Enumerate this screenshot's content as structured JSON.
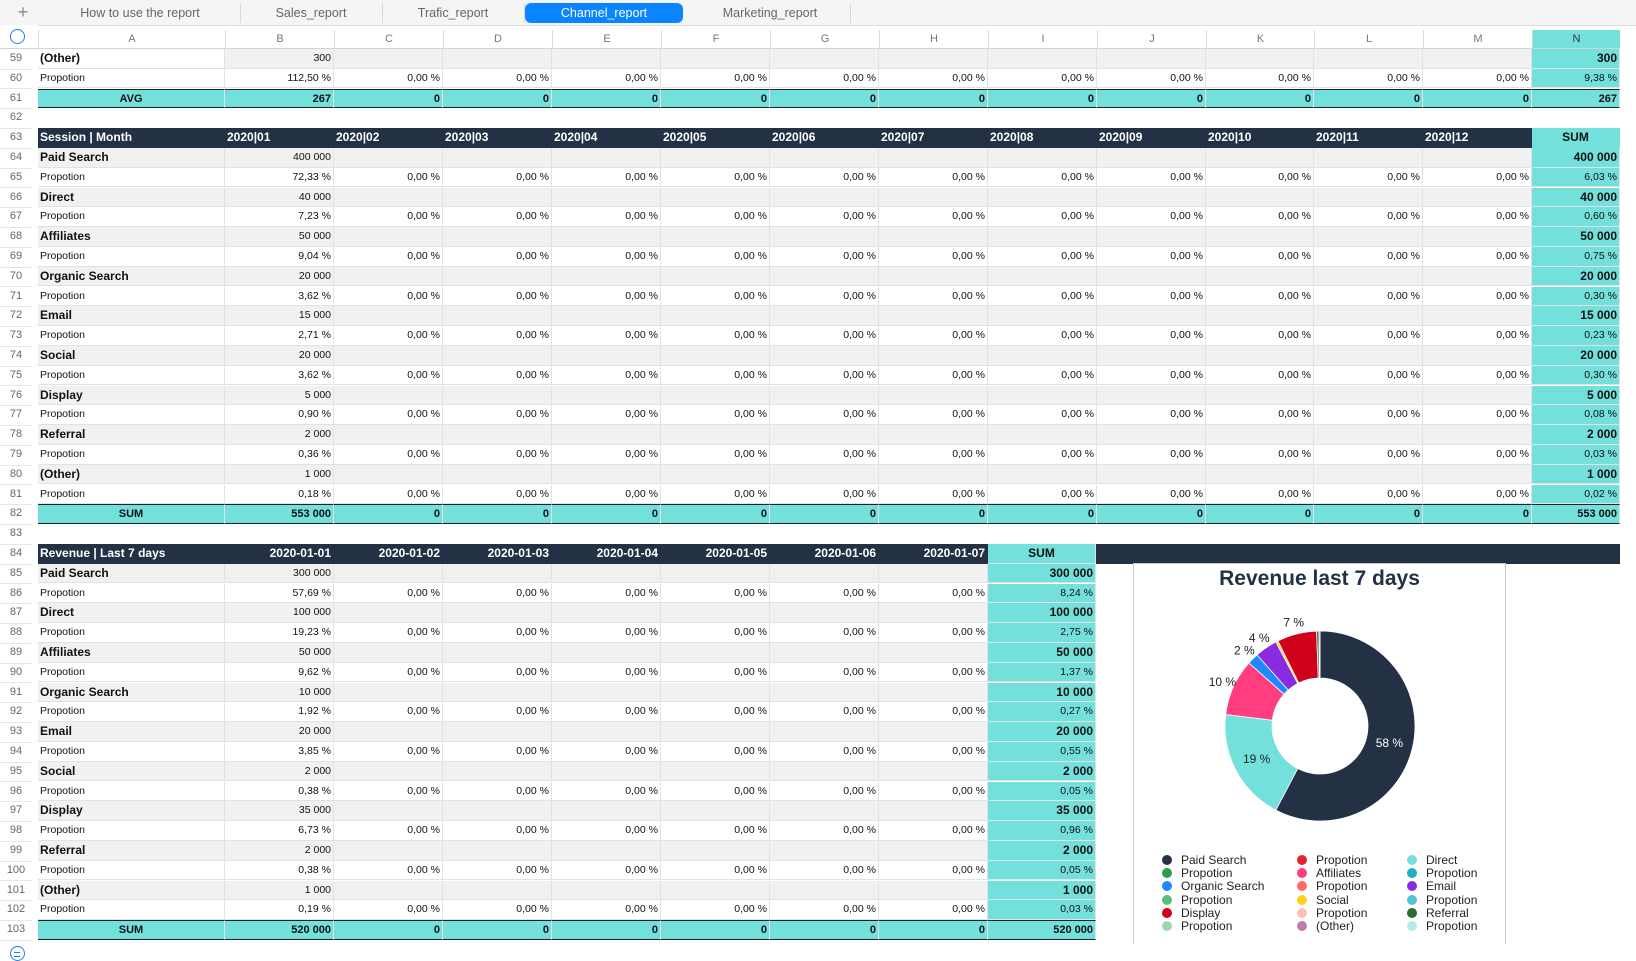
{
  "tabs": [
    {
      "label": "How to use the report",
      "active": false
    },
    {
      "label": "Sales_report",
      "active": false
    },
    {
      "label": "Trafic_report",
      "active": false
    },
    {
      "label": "Channel_report",
      "active": true
    },
    {
      "label": "Marketing_report",
      "active": false
    }
  ],
  "add_sheet_symbol": "+",
  "columns": [
    "A",
    "B",
    "C",
    "D",
    "E",
    "F",
    "G",
    "H",
    "I",
    "J",
    "K",
    "L",
    "M",
    "N"
  ],
  "selected_column": "N",
  "rows": {
    "59": {
      "num": "59",
      "cells": [
        "(Other)",
        "300",
        "",
        "",
        "",
        "",
        "",
        "",
        "",
        "",
        "",
        "",
        "",
        "300"
      ]
    },
    "60": {
      "num": "60",
      "cells": [
        "Propotion",
        "112,50 %",
        "0,00 %",
        "0,00 %",
        "0,00 %",
        "0,00 %",
        "0,00 %",
        "0,00 %",
        "0,00 %",
        "0,00 %",
        "0,00 %",
        "0,00 %",
        "0,00 %",
        "9,38 %"
      ]
    },
    "61": {
      "num": "61",
      "cells": [
        "AVG",
        "267",
        "0",
        "0",
        "0",
        "0",
        "0",
        "0",
        "0",
        "0",
        "0",
        "0",
        "0",
        "267"
      ]
    },
    "62": {
      "num": "62"
    },
    "63": {
      "num": "63",
      "cells": [
        "Session | Month",
        "2020|01",
        "2020|02",
        "2020|03",
        "2020|04",
        "2020|05",
        "2020|06",
        "2020|07",
        "2020|08",
        "2020|09",
        "2020|10",
        "2020|11",
        "2020|12",
        "SUM"
      ]
    }
  },
  "session_table": {
    "start_row": 64,
    "channels": [
      {
        "name": "Paid Search",
        "value": "400 000",
        "prop": "72,33 %",
        "sum": "400 000",
        "sum_prop": "6,03 %"
      },
      {
        "name": "Direct",
        "value": "40 000",
        "prop": "7,23 %",
        "sum": "40 000",
        "sum_prop": "0,60 %"
      },
      {
        "name": "Affiliates",
        "value": "50 000",
        "prop": "9,04 %",
        "sum": "50 000",
        "sum_prop": "0,75 %"
      },
      {
        "name": "Organic Search",
        "value": "20 000",
        "prop": "3,62 %",
        "sum": "20 000",
        "sum_prop": "0,30 %"
      },
      {
        "name": "Email",
        "value": "15 000",
        "prop": "2,71 %",
        "sum": "15 000",
        "sum_prop": "0,23 %"
      },
      {
        "name": "Social",
        "value": "20 000",
        "prop": "3,62 %",
        "sum": "20 000",
        "sum_prop": "0,30 %"
      },
      {
        "name": "Display",
        "value": "5 000",
        "prop": "0,90 %",
        "sum": "5 000",
        "sum_prop": "0,08 %"
      },
      {
        "name": "Referral",
        "value": "2 000",
        "prop": "0,36 %",
        "sum": "2 000",
        "sum_prop": "0,03 %"
      },
      {
        "name": "(Other)",
        "value": "1 000",
        "prop": "0,18 %",
        "sum": "1 000",
        "sum_prop": "0,02 %"
      }
    ],
    "prop_label": "Propotion",
    "zero_prop": "0,00 %",
    "total_row": {
      "num": "82",
      "label": "SUM",
      "b": "553 000",
      "zero": "0",
      "sum": "553 000"
    }
  },
  "row83": "83",
  "revenue_table": {
    "header_row": "84",
    "title": "Revenue | Last 7 days",
    "dates": [
      "2020-01-01",
      "2020-01-02",
      "2020-01-03",
      "2020-01-04",
      "2020-01-05",
      "2020-01-06",
      "2020-01-07"
    ],
    "sum_label": "SUM",
    "start_row": 85,
    "channels": [
      {
        "name": "Paid Search",
        "value": "300 000",
        "prop": "57,69 %",
        "sum": "300 000",
        "sum_prop": "8,24 %"
      },
      {
        "name": "Direct",
        "value": "100 000",
        "prop": "19,23 %",
        "sum": "100 000",
        "sum_prop": "2,75 %"
      },
      {
        "name": "Affiliates",
        "value": "50 000",
        "prop": "9,62 %",
        "sum": "50 000",
        "sum_prop": "1,37 %"
      },
      {
        "name": "Organic Search",
        "value": "10 000",
        "prop": "1,92 %",
        "sum": "10 000",
        "sum_prop": "0,27 %"
      },
      {
        "name": "Email",
        "value": "20 000",
        "prop": "3,85 %",
        "sum": "20 000",
        "sum_prop": "0,55 %"
      },
      {
        "name": "Social",
        "value": "2 000",
        "prop": "0,38 %",
        "sum": "2 000",
        "sum_prop": "0,05 %"
      },
      {
        "name": "Display",
        "value": "35 000",
        "prop": "6,73 %",
        "sum": "35 000",
        "sum_prop": "0,96 %"
      },
      {
        "name": "Referral",
        "value": "2 000",
        "prop": "0,38 %",
        "sum": "2 000",
        "sum_prop": "0,05 %"
      },
      {
        "name": "(Other)",
        "value": "1 000",
        "prop": "0,19 %",
        "sum": "1 000",
        "sum_prop": "0,03 %"
      }
    ],
    "prop_label": "Propotion",
    "zero_prop": "0,00 %",
    "total_row": {
      "num": "103",
      "label": "SUM",
      "b": "520 000",
      "zero": "0",
      "sum": "520 000"
    }
  },
  "chart_data": {
    "type": "pie",
    "title": "Revenue last 7 days",
    "donut": true,
    "slices": [
      {
        "label": "Paid Search",
        "value": 300000,
        "color": "#243044",
        "pct_label": "58 %"
      },
      {
        "label": "Propotion",
        "value": 0,
        "color": "#2e9d4c",
        "pct_label": ""
      },
      {
        "label": "Direct",
        "value": 100000,
        "color": "#74e0dc",
        "pct_label": "19 %"
      },
      {
        "label": "Propotion",
        "value": 0,
        "color": "#1fb0c4",
        "pct_label": ""
      },
      {
        "label": "Affiliates",
        "value": 50000,
        "color": "#ff3d7f",
        "pct_label": "10 %"
      },
      {
        "label": "Propotion",
        "value": 0,
        "color": "#ff6b6b",
        "pct_label": ""
      },
      {
        "label": "Organic Search",
        "value": 10000,
        "color": "#1e88ff",
        "pct_label": "2 %"
      },
      {
        "label": "Propotion",
        "value": 0,
        "color": "#5cbf76",
        "pct_label": ""
      },
      {
        "label": "Email",
        "value": 20000,
        "color": "#8a2be2",
        "pct_label": "4 %"
      },
      {
        "label": "Propotion",
        "value": 0,
        "color": "#4fc3e0",
        "pct_label": ""
      },
      {
        "label": "Social",
        "value": 2000,
        "color": "#ffd21f",
        "pct_label": ""
      },
      {
        "label": "Propotion",
        "value": 0,
        "color": "#ffc0b0",
        "pct_label": ""
      },
      {
        "label": "Display",
        "value": 35000,
        "color": "#d0021b",
        "pct_label": "7 %"
      },
      {
        "label": "Propotion",
        "value": 0,
        "color": "#9fd6b0",
        "pct_label": ""
      },
      {
        "label": "Referral",
        "value": 2000,
        "color": "#2f6b2f",
        "pct_label": ""
      },
      {
        "label": "(Other)",
        "value": 1000,
        "color": "#c07aa8",
        "pct_label": ""
      },
      {
        "label": "Propotion",
        "value": 0,
        "color": "#b5ece9",
        "pct_label": ""
      }
    ],
    "legend": {
      "placement": "bottom",
      "columns": [
        [
          {
            "label": "Paid Search",
            "color": "#243044"
          },
          {
            "label": "Propotion",
            "color": "#2e9d4c"
          },
          {
            "label": "Organic Search",
            "color": "#1e88ff"
          },
          {
            "label": "Propotion",
            "color": "#5cbf76"
          },
          {
            "label": "Display",
            "color": "#d0021b"
          },
          {
            "label": "Propotion",
            "color": "#9fd6b0"
          }
        ],
        [
          {
            "label": "Propotion",
            "color": "#e8232b"
          },
          {
            "label": "Affiliates",
            "color": "#ff3d7f"
          },
          {
            "label": "Propotion",
            "color": "#ff6b6b"
          },
          {
            "label": "Social",
            "color": "#ffd21f"
          },
          {
            "label": "Propotion",
            "color": "#ffc0b0"
          },
          {
            "label": "(Other)",
            "color": "#c07aa8"
          }
        ],
        [
          {
            "label": "Direct",
            "color": "#74e0dc"
          },
          {
            "label": "Propotion",
            "color": "#1fb0c4"
          },
          {
            "label": "Email",
            "color": "#8a2be2"
          },
          {
            "label": "Propotion",
            "color": "#4fc3e0"
          },
          {
            "label": "Referral",
            "color": "#2f6b2f"
          },
          {
            "label": "Propotion",
            "color": "#b5ece9"
          }
        ]
      ]
    }
  }
}
